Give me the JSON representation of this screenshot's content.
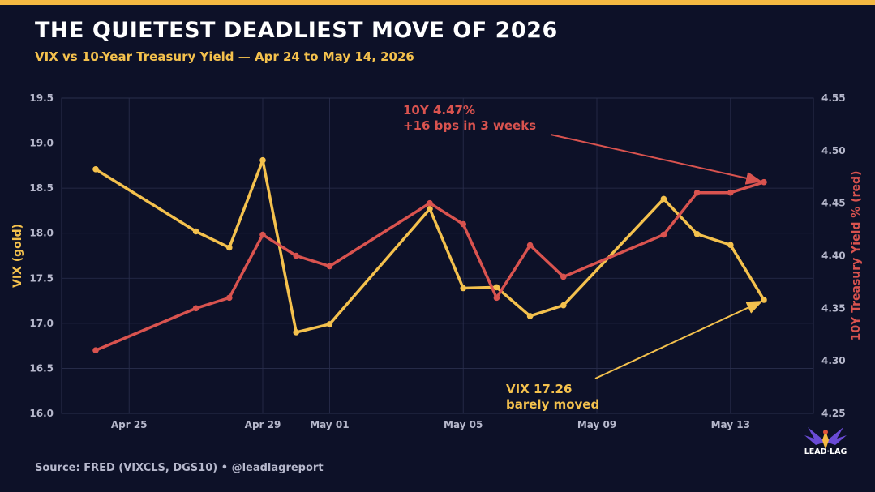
{
  "title": "THE QUIETEST DEADLIEST MOVE OF 2026",
  "subtitle": "VIX vs 10-Year Treasury Yield — Apr 24 to May 14, 2026",
  "source": "Source: FRED (VIXCLS, DGS10)  •  @leadlagreport",
  "logo_text": "LEAD·LAG",
  "colors": {
    "background": "#0d1128",
    "accent_bar": "#f4b942",
    "vix": "#f4c14d",
    "yield": "#d9534f",
    "grid": "#2a2f4d",
    "tick": "#b6b8cc"
  },
  "chart_data": {
    "type": "line",
    "x_ticks": [
      "Apr 25",
      "Apr 29",
      "May 01",
      "May 05",
      "May 09",
      "May 13"
    ],
    "ylabel_left": "VIX (gold)",
    "ylabel_right": "10Y Treasury Yield % (red)",
    "ylim_left": [
      16.0,
      19.5
    ],
    "yticks_left": [
      "16.0",
      "16.5",
      "17.0",
      "17.5",
      "18.0",
      "18.5",
      "19.0",
      "19.5"
    ],
    "ylim_right": [
      4.25,
      4.55
    ],
    "yticks_right": [
      "4.25",
      "4.30",
      "4.35",
      "4.40",
      "4.45",
      "4.50",
      "4.55"
    ],
    "grid": true,
    "series": [
      {
        "axis": "left",
        "color": "#f4c14d",
        "x": [
          "2026-04-24",
          "2026-04-27",
          "2026-04-28",
          "2026-04-29",
          "2026-04-30",
          "2026-05-01",
          "2026-05-04",
          "2026-05-05",
          "2026-05-06",
          "2026-05-07",
          "2026-05-08",
          "2026-05-11",
          "2026-05-12",
          "2026-05-13",
          "2026-05-14"
        ],
        "values": [
          18.71,
          18.02,
          17.84,
          18.81,
          16.9,
          16.99,
          18.27,
          17.39,
          17.4,
          17.08,
          17.2,
          18.38,
          17.99,
          17.87,
          17.26
        ]
      },
      {
        "axis": "right",
        "color": "#d9534f",
        "x": [
          "2026-04-24",
          "2026-04-27",
          "2026-04-28",
          "2026-04-29",
          "2026-04-30",
          "2026-05-01",
          "2026-05-04",
          "2026-05-05",
          "2026-05-06",
          "2026-05-07",
          "2026-05-08",
          "2026-05-11",
          "2026-05-12",
          "2026-05-13",
          "2026-05-14"
        ],
        "values": [
          4.31,
          4.35,
          4.36,
          4.42,
          4.4,
          4.39,
          4.45,
          4.43,
          4.36,
          4.41,
          4.38,
          4.42,
          4.46,
          4.46,
          4.47
        ]
      }
    ],
    "annotations": [
      {
        "series": "right",
        "line1": "10Y 4.47%",
        "line2": "+16 bps in 3 weeks",
        "color": "#d9534f"
      },
      {
        "series": "left",
        "line1": "VIX 17.26",
        "line2": "barely moved",
        "color": "#f4c14d"
      }
    ]
  }
}
